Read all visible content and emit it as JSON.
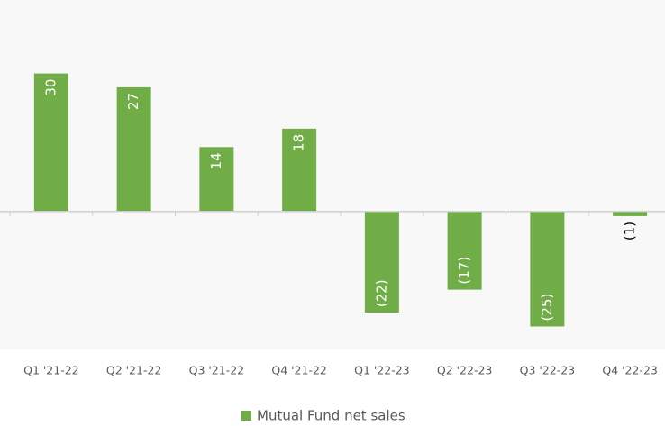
{
  "chart_data": {
    "type": "bar",
    "categories": [
      "Q1 '21-22",
      "Q2 '21-22",
      "Q3 '21-22",
      "Q4 '21-22",
      "Q1 '22-23",
      "Q2 '22-23",
      "Q3 '22-23",
      "Q4 '22-23"
    ],
    "series": [
      {
        "name": "Mutual Fund net sales",
        "color": "#70ad47",
        "values": [
          30,
          27,
          14,
          18,
          -22,
          -17,
          -25,
          -1
        ],
        "value_labels": [
          "30",
          "27",
          "14",
          "18",
          "(22)",
          "(17)",
          "(25)",
          "(1)"
        ]
      }
    ],
    "ylim": [
      -30,
      45
    ],
    "legend": "bottom"
  }
}
